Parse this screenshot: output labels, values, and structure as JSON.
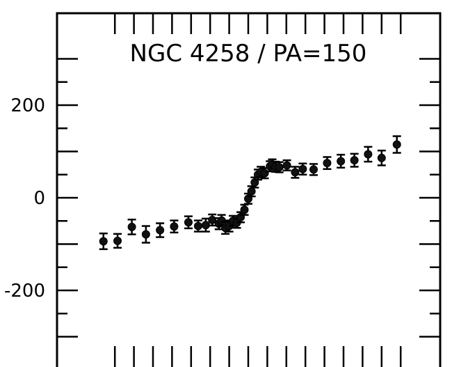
{
  "chart_data": {
    "type": "scatter",
    "title": "NGC 4258 / PA=150",
    "xlabel": "",
    "ylabel": "",
    "xlim": [
      -80,
      80
    ],
    "ylim": [
      -350,
      400
    ],
    "grid": false,
    "y_tick_labels": [
      {
        "value": 200,
        "label": "200"
      },
      {
        "value": 0,
        "label": "0"
      },
      {
        "value": -200,
        "label": "-200"
      }
    ],
    "y_major_ticks": [
      300,
      200,
      100,
      0,
      -100,
      -200,
      -300
    ],
    "y_minor_ticks": [
      250,
      150,
      50,
      -50,
      -150,
      -250
    ],
    "x_ticks": [
      -70,
      -60,
      -50,
      -40,
      -30,
      -20,
      -10,
      0,
      10,
      20,
      30,
      40,
      50,
      60,
      70,
      80
    ],
    "series": [
      {
        "points": [
          {
            "x": -76.0,
            "y": -94,
            "err": 17
          },
          {
            "x": -68.6,
            "y": -93,
            "err": 15
          },
          {
            "x": -61.1,
            "y": -63,
            "err": 16
          },
          {
            "x": -53.7,
            "y": -79,
            "err": 18
          },
          {
            "x": -46.3,
            "y": -70,
            "err": 15
          },
          {
            "x": -38.9,
            "y": -62,
            "err": 13
          },
          {
            "x": -31.4,
            "y": -53,
            "err": 13
          },
          {
            "x": -26.3,
            "y": -61,
            "err": 12
          },
          {
            "x": -22.3,
            "y": -59,
            "err": 14
          },
          {
            "x": -18.9,
            "y": -48,
            "err": 12
          },
          {
            "x": -15.4,
            "y": -56,
            "err": 12
          },
          {
            "x": -14.0,
            "y": -49,
            "err": 12
          },
          {
            "x": -12.0,
            "y": -65,
            "err": 13
          },
          {
            "x": -10.0,
            "y": -61,
            "err": 12
          },
          {
            "x": -8.0,
            "y": -50,
            "err": 11
          },
          {
            "x": -6.0,
            "y": -54,
            "err": 11
          },
          {
            "x": -4.0,
            "y": -42,
            "err": 11
          },
          {
            "x": -2.0,
            "y": -26,
            "err": 11
          },
          {
            "x": 0.0,
            "y": -2,
            "err": 11
          },
          {
            "x": 1.7,
            "y": 14,
            "err": 11
          },
          {
            "x": 3.4,
            "y": 33,
            "err": 11
          },
          {
            "x": 5.1,
            "y": 50,
            "err": 11
          },
          {
            "x": 6.6,
            "y": 56,
            "err": 11
          },
          {
            "x": 8.6,
            "y": 53,
            "err": 11
          },
          {
            "x": 11.4,
            "y": 68,
            "err": 11
          },
          {
            "x": 12.6,
            "y": 72,
            "err": 11
          },
          {
            "x": 14.3,
            "y": 67,
            "err": 11
          },
          {
            "x": 16.3,
            "y": 66,
            "err": 11
          },
          {
            "x": 20.3,
            "y": 70,
            "err": 11
          },
          {
            "x": 24.6,
            "y": 55,
            "err": 12
          },
          {
            "x": 28.6,
            "y": 62,
            "err": 12
          },
          {
            "x": 34.3,
            "y": 61,
            "err": 12
          },
          {
            "x": 41.4,
            "y": 75,
            "err": 13
          },
          {
            "x": 48.6,
            "y": 79,
            "err": 14
          },
          {
            "x": 55.7,
            "y": 81,
            "err": 14
          },
          {
            "x": 62.9,
            "y": 94,
            "err": 16
          },
          {
            "x": 70.0,
            "y": 86,
            "err": 16
          },
          {
            "x": 78.0,
            "y": 115,
            "err": 18
          }
        ]
      }
    ]
  }
}
